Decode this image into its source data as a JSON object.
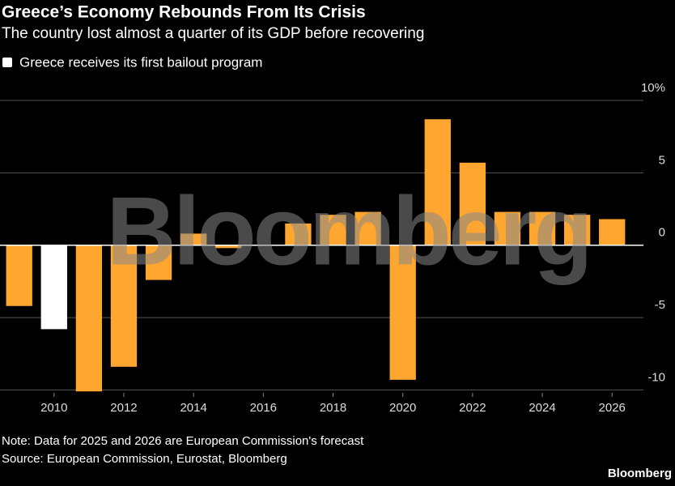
{
  "chart_data": {
    "type": "bar",
    "title": "Greece’s Economy Rebounds From Its Crisis",
    "subtitle": "The country lost almost a quarter of its GDP before recovering",
    "legend": [
      {
        "label": "Greece receives its first bailout program",
        "color": "#ffffff"
      }
    ],
    "x": [
      2009,
      2010,
      2011,
      2012,
      2013,
      2014,
      2015,
      2016,
      2017,
      2018,
      2019,
      2020,
      2021,
      2022,
      2023,
      2024,
      2025,
      2026
    ],
    "values": [
      -4.2,
      -5.8,
      -10.1,
      -8.4,
      -2.4,
      0.8,
      -0.2,
      0,
      1.5,
      2.1,
      2.3,
      -9.3,
      8.7,
      5.7,
      2.3,
      2.3,
      2.1,
      1.8
    ],
    "colors": [
      "#ffa630",
      "#ffffff",
      "#ffa630",
      "#ffa630",
      "#ffa630",
      "#ffa630",
      "#ffa630",
      "#ffa630",
      "#ffa630",
      "#ffa630",
      "#ffa630",
      "#ffa630",
      "#ffa630",
      "#ffa630",
      "#ffa630",
      "#ffa630",
      "#ffa630",
      "#ffa630"
    ],
    "xlim": [
      2008.45,
      2026.9
    ],
    "xticks": [
      2010,
      2012,
      2014,
      2016,
      2018,
      2020,
      2022,
      2024,
      2026
    ],
    "ylim": [
      -10.2,
      10
    ],
    "yticks": [
      {
        "value": 10,
        "label": "10%"
      },
      5,
      0,
      -5,
      -10
    ],
    "grid": true,
    "watermark": "Bloomberg",
    "note": "Note: Data for 2025 and 2026 are European Commission's forecast",
    "source": "Source: European Commission, Eurostat, Bloomberg",
    "logo": "Bloomberg"
  }
}
